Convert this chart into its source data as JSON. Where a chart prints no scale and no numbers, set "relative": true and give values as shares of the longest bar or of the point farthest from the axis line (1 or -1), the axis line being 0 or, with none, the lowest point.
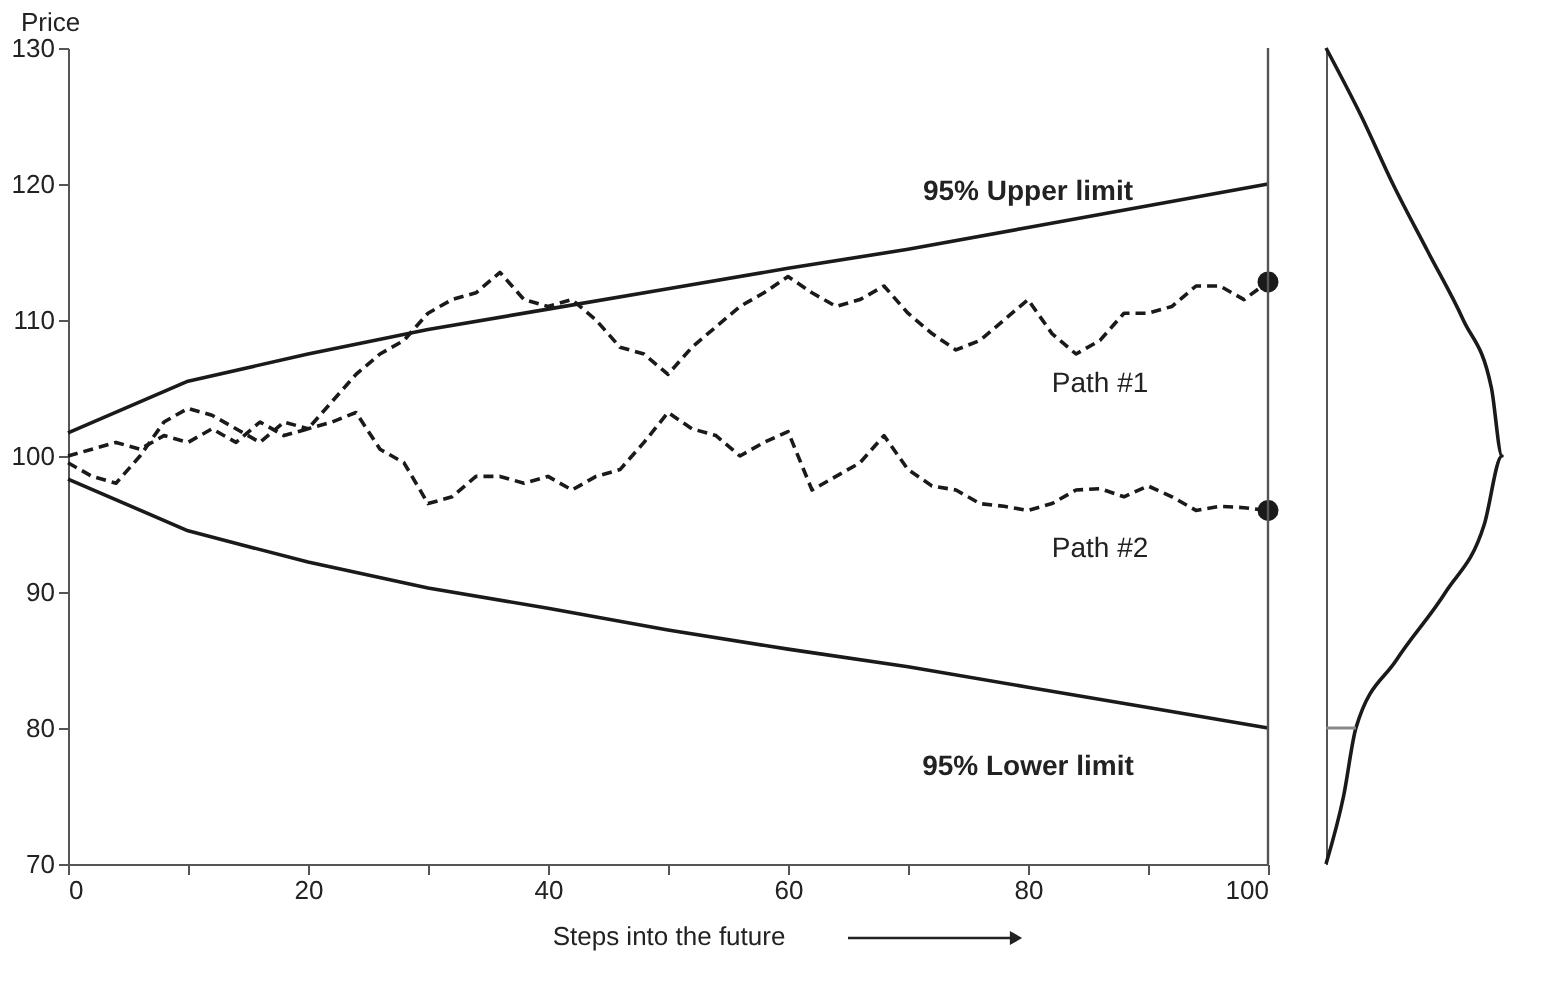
{
  "chart_data": [
    {
      "type": "line",
      "xlabel": "Steps into the future",
      "ylabel": "Price",
      "xlim": [
        0,
        100
      ],
      "ylim": [
        70,
        130
      ],
      "xticks": [
        0,
        {
          "value": 10,
          "label": null
        },
        20,
        {
          "value": 30,
          "label": null
        },
        40,
        {
          "value": 50,
          "label": null
        },
        60,
        {
          "value": 70,
          "label": null
        },
        80,
        {
          "value": 90,
          "label": null
        },
        100
      ],
      "yticks": [
        70,
        80,
        90,
        100,
        110,
        120,
        130
      ],
      "grid": false,
      "series": [
        {
          "type": "line",
          "color": "#1a1a1a",
          "line_style": "solid",
          "x": [
            0,
            10,
            20,
            30,
            40,
            50,
            60,
            70,
            80,
            90,
            100
          ],
          "values": [
            101.7,
            105.5,
            107.5,
            109.3,
            110.8,
            112.3,
            113.8,
            115.2,
            116.8,
            118.4,
            120
          ]
        },
        {
          "type": "line",
          "color": "#1a1a1a",
          "line_style": "solid",
          "x": [
            0,
            10,
            20,
            30,
            40,
            50,
            60,
            70,
            80,
            90,
            100
          ],
          "values": [
            98.3,
            94.5,
            92.2,
            90.3,
            88.8,
            87.2,
            85.8,
            84.5,
            83,
            81.5,
            80
          ]
        },
        {
          "type": "line",
          "color": "#1a1a1a",
          "line_style": "dashed",
          "x": [
            0,
            2,
            4,
            6,
            8,
            10,
            12,
            14,
            16,
            18,
            20,
            22,
            24,
            26,
            28,
            30,
            32,
            34,
            36,
            38,
            40,
            42,
            44,
            46,
            48,
            50,
            52,
            54,
            56,
            58,
            60,
            62,
            64,
            66,
            68,
            70,
            72,
            74,
            76,
            78,
            80,
            82,
            84,
            86,
            88,
            90,
            92,
            94,
            96,
            98,
            100
          ],
          "values": [
            100,
            100.5,
            101,
            100.5,
            101.5,
            101,
            102,
            101,
            102.5,
            101.5,
            102,
            104,
            106,
            107.5,
            108.5,
            110.5,
            111.5,
            112,
            113.5,
            111.5,
            111,
            111.5,
            110,
            108,
            107.5,
            106,
            108,
            109.5,
            111,
            112,
            113.2,
            112,
            111,
            111.5,
            112.5,
            110.5,
            109,
            107.8,
            108.5,
            110,
            111.5,
            109,
            107.5,
            108.5,
            110.5,
            110.5,
            111,
            112.5,
            112.5,
            111.5,
            112.8
          ]
        },
        {
          "type": "line",
          "color": "#1a1a1a",
          "line_style": "dashed",
          "x": [
            0,
            2,
            4,
            6,
            8,
            10,
            12,
            14,
            16,
            18,
            20,
            22,
            24,
            26,
            28,
            30,
            32,
            34,
            36,
            38,
            40,
            42,
            44,
            46,
            48,
            50,
            52,
            54,
            56,
            58,
            60,
            62,
            64,
            66,
            68,
            70,
            72,
            74,
            76,
            78,
            80,
            82,
            84,
            86,
            88,
            90,
            92,
            94,
            96,
            98,
            100
          ],
          "values": [
            99.5,
            98.5,
            98,
            100,
            102.5,
            103.5,
            103,
            102,
            101,
            102.5,
            102,
            102.5,
            103.2,
            100.5,
            99.5,
            96.5,
            97,
            98.5,
            98.5,
            98,
            98.5,
            97.5,
            98.5,
            99,
            101,
            103.2,
            102,
            101.5,
            100,
            101,
            101.8,
            97.5,
            98.5,
            99.5,
            101.5,
            99,
            97.8,
            97.5,
            96.5,
            96.3,
            96,
            96.5,
            97.5,
            97.6,
            97,
            97.8,
            97,
            96,
            96.3,
            96.2,
            96
          ]
        },
        {
          "type": "scatter",
          "color": "#1a1a1a",
          "marker": "circle",
          "x": [
            100,
            100
          ],
          "values": [
            112.8,
            96
          ]
        }
      ],
      "ref_lines": [
        {
          "axis": "x",
          "value": 100,
          "color": "#555555"
        }
      ],
      "annotations": [
        "95% Upper limit",
        "95% Lower limit",
        "Path #1",
        "Path #2"
      ]
    },
    {
      "type": "line",
      "relative": true,
      "orientation": "horizontal",
      "ylim": [
        70,
        130
      ],
      "tick_labels": false,
      "grid": false,
      "series": [
        {
          "color": "#1a1a1a",
          "x": [
            70,
            75,
            80,
            85,
            90,
            95,
            100,
            105,
            110,
            115,
            120,
            125,
            130
          ],
          "values": [
            0.0,
            0.1,
            0.17,
            0.4,
            0.68,
            0.9,
            1.0,
            0.94,
            0.78,
            0.58,
            0.38,
            0.2,
            0.0
          ]
        }
      ],
      "ref_lines": [
        {
          "axis": "y",
          "value": 80,
          "color": "#888888"
        }
      ]
    }
  ]
}
